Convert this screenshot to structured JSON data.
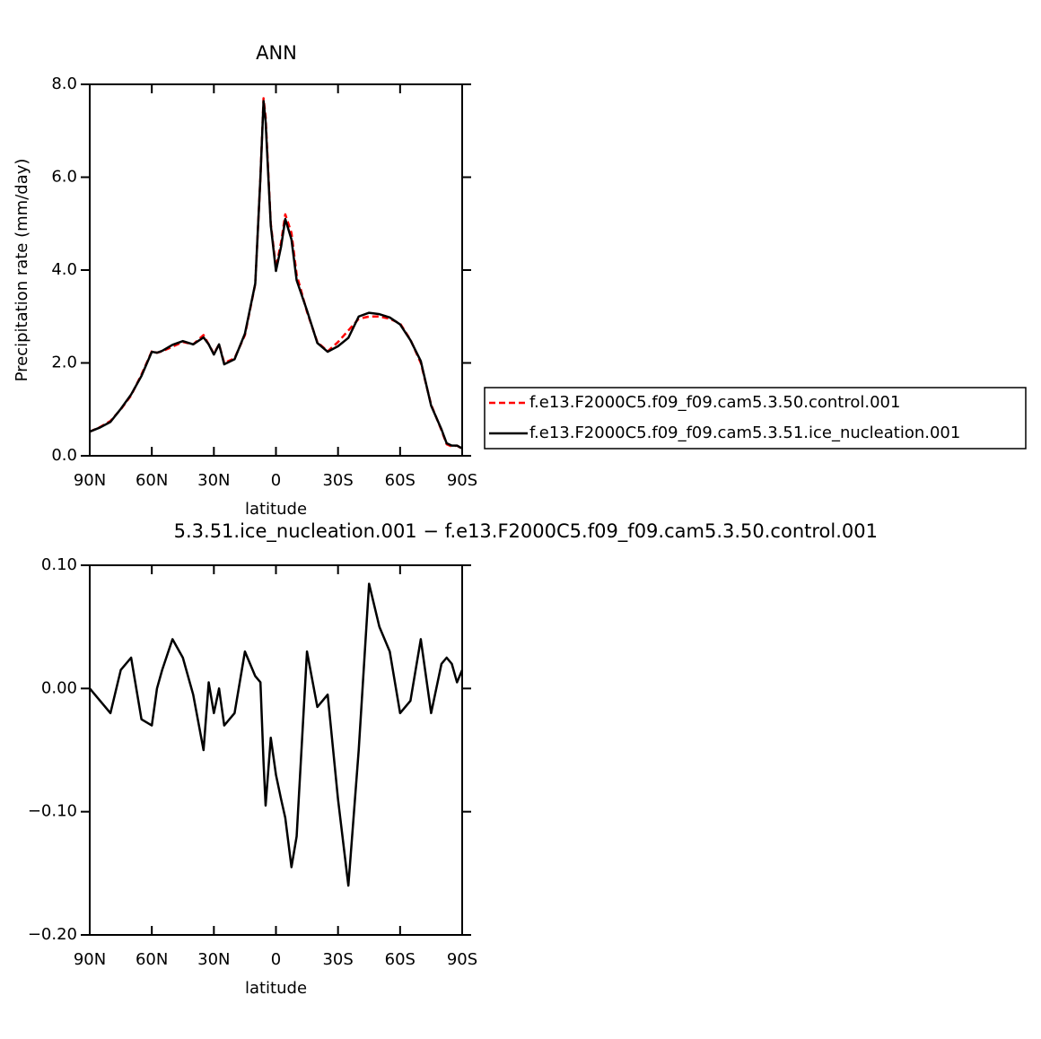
{
  "chart_data": [
    {
      "type": "line",
      "title": "ANN",
      "xlabel": "latitude",
      "ylabel": "Precipitation rate (mm/day)",
      "x": [
        90,
        85,
        80,
        75,
        70,
        65,
        60,
        57.5,
        55,
        50,
        45,
        40,
        35,
        32.5,
        30,
        27.5,
        25,
        20,
        15,
        10,
        7.5,
        6,
        5,
        2.5,
        0,
        -2.5,
        -4.5,
        -7.5,
        -10,
        -15,
        -20,
        -25,
        -30,
        -35,
        -40,
        -45,
        -50,
        -55,
        -60,
        -65,
        -70,
        -75,
        -80,
        -82.5,
        -85,
        -87.5,
        -90
      ],
      "series": [
        {
          "name": "f.e13.F2000C5.f09_f09.cam5.3.50.control.001",
          "color": "#ff0000",
          "dash": true,
          "values": [
            0.52,
            0.62,
            0.75,
            1.0,
            1.3,
            1.75,
            2.25,
            2.22,
            2.25,
            2.35,
            2.45,
            2.4,
            2.6,
            2.4,
            2.2,
            2.4,
            2.0,
            2.1,
            2.6,
            3.7,
            6.0,
            7.7,
            7.3,
            5.0,
            4.05,
            4.6,
            5.2,
            4.8,
            3.9,
            3.1,
            2.45,
            2.25,
            2.45,
            2.7,
            2.95,
            3.0,
            3.0,
            2.95,
            2.85,
            2.5,
            2.0,
            1.1,
            0.55,
            0.25,
            0.2,
            0.22,
            0.15
          ]
        },
        {
          "name": "f.e13.F2000C5.f09_f09.cam5.3.51.ice_nucleation.001",
          "color": "#000000",
          "dash": false,
          "values": [
            0.52,
            0.61,
            0.73,
            1.01,
            1.32,
            1.72,
            2.24,
            2.22,
            2.26,
            2.39,
            2.47,
            2.4,
            2.55,
            2.4,
            2.18,
            2.4,
            1.97,
            2.08,
            2.63,
            3.71,
            6.0,
            7.64,
            7.2,
            4.96,
            3.98,
            4.51,
            5.1,
            4.66,
            3.78,
            3.13,
            2.43,
            2.24,
            2.36,
            2.54,
            3.0,
            3.08,
            3.05,
            2.98,
            2.83,
            2.49,
            2.04,
            1.08,
            0.57,
            0.27,
            0.22,
            0.22,
            0.16
          ]
        }
      ],
      "xlim": [
        90,
        -90
      ],
      "xticks": [
        {
          "value": 90,
          "label": "90N"
        },
        {
          "value": 60,
          "label": "60N"
        },
        {
          "value": 30,
          "label": "30N"
        },
        0,
        {
          "value": -30,
          "label": "30S"
        },
        {
          "value": -60,
          "label": "60S"
        },
        {
          "value": -90,
          "label": "90S"
        }
      ],
      "ylim": [
        0,
        8
      ],
      "yticks": [
        {
          "value": 0,
          "label": "0.0"
        },
        {
          "value": 2,
          "label": "2.0"
        },
        {
          "value": 4,
          "label": "4.0"
        },
        {
          "value": 6,
          "label": "6.0"
        },
        {
          "value": 8,
          "label": "8.0"
        }
      ]
    },
    {
      "type": "line",
      "title": "5.3.51.ice_nucleation.001 − f.e13.F2000C5.f09_f09.cam5.3.50.control.001",
      "xlabel": "latitude",
      "x": [
        90,
        85,
        80,
        75,
        70,
        65,
        60,
        57.5,
        55,
        50,
        45,
        40,
        35,
        32.5,
        30,
        27.5,
        25,
        20,
        15,
        10,
        7.5,
        6,
        5,
        2.5,
        0,
        -2.5,
        -4.5,
        -7.5,
        -10,
        -15,
        -20,
        -25,
        -30,
        -35,
        -40,
        -45,
        -50,
        -55,
        -60,
        -65,
        -70,
        -75,
        -80,
        -82.5,
        -85,
        -87.5,
        -90
      ],
      "series": [
        {
          "color": "#000000",
          "dash": false,
          "values": [
            0.0,
            -0.01,
            -0.02,
            0.015,
            0.025,
            -0.025,
            -0.03,
            0.0,
            0.015,
            0.04,
            0.025,
            -0.005,
            -0.05,
            0.005,
            -0.02,
            0.0,
            -0.03,
            -0.02,
            0.03,
            0.01,
            0.005,
            -0.06,
            -0.095,
            -0.04,
            -0.07,
            -0.09,
            -0.105,
            -0.145,
            -0.12,
            0.03,
            -0.015,
            -0.005,
            -0.09,
            -0.16,
            -0.05,
            0.085,
            0.05,
            0.03,
            -0.02,
            -0.01,
            0.04,
            -0.02,
            0.02,
            0.025,
            0.02,
            0.005,
            0.015
          ]
        }
      ],
      "xlim": [
        90,
        -90
      ],
      "xticks": [
        {
          "value": 90,
          "label": "90N"
        },
        {
          "value": 60,
          "label": "60N"
        },
        {
          "value": 30,
          "label": "30N"
        },
        0,
        {
          "value": -30,
          "label": "30S"
        },
        {
          "value": -60,
          "label": "60S"
        },
        {
          "value": -90,
          "label": "90S"
        }
      ],
      "ylim": [
        -0.2,
        0.1
      ],
      "yticks": [
        {
          "value": -0.2,
          "label": "−0.20"
        },
        {
          "value": -0.1,
          "label": "−0.10"
        },
        {
          "value": 0,
          "label": "0.00"
        },
        {
          "value": 0.1,
          "label": "0.10"
        }
      ]
    }
  ]
}
